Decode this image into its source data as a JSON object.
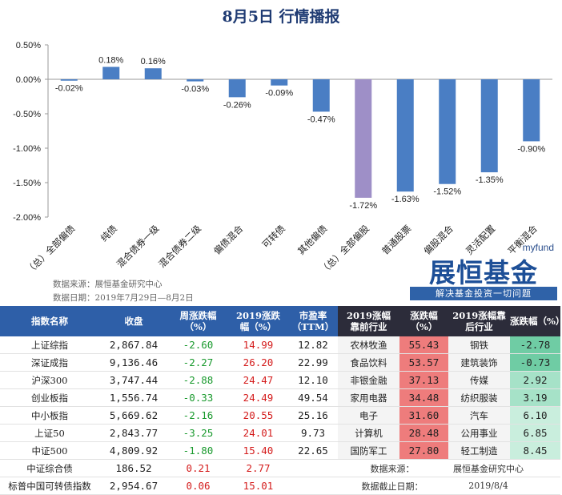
{
  "header": {
    "title": "8月5日  行情播报"
  },
  "chart_data": {
    "type": "bar",
    "categories": [
      "（总）全部偏债",
      "纯债",
      "混合债券一级",
      "混合债券二级",
      "偏债混合",
      "可转债",
      "其他偏债",
      "（总）全部偏股",
      "普通股票",
      "偏股混合",
      "灵活配置",
      "平衡混合"
    ],
    "values": [
      -0.02,
      0.18,
      0.16,
      -0.03,
      -0.26,
      -0.09,
      -0.47,
      -1.72,
      -1.63,
      -1.52,
      -1.35,
      -0.9
    ],
    "value_labels": [
      "-0.02%",
      "0.18%",
      "0.16%",
      "-0.03%",
      "-0.26%",
      "-0.09%",
      "-0.47%",
      "-1.72%",
      "-1.63%",
      "-1.52%",
      "-1.35%",
      "-0.90%"
    ],
    "highlight_index": 7,
    "ylim": [
      -2.0,
      0.5
    ],
    "yticks": [
      "0.50%",
      "0.00%",
      "-0.50%",
      "-1.00%",
      "-1.50%",
      "-2.00%"
    ],
    "bar_color": "#4a7ec4",
    "highlight_color": "#9e8fc7",
    "grid": false,
    "legend": "none"
  },
  "chart_notes": {
    "source": "数据来源：展恒基金研究中心",
    "date": "数据日期：2019年7月29日—8月2日"
  },
  "logo": {
    "small": "myfund",
    "big": "展恒基金",
    "slogan": "解决基金投资一切问题"
  },
  "table": {
    "headers": [
      "指数名称",
      "收盘",
      "周涨跌幅\n（%）",
      "2019涨跌\n幅（%）",
      "市盈率\n（TTM）",
      "2019涨幅\n靠前行业",
      "涨跌幅（%）",
      "2019涨幅靠\n后行业",
      "涨跌幅（%）"
    ],
    "rows": [
      {
        "name": "上证综指",
        "close": "2,867.84",
        "week": "-2.60",
        "ytd": "14.99",
        "pe": "12.82",
        "top_ind": "农林牧渔",
        "top_chg": "55.43",
        "bot_ind": "钢铁",
        "bot_chg": "-2.78"
      },
      {
        "name": "深证成指",
        "close": "9,136.46",
        "week": "-2.27",
        "ytd": "26.20",
        "pe": "22.99",
        "top_ind": "食品饮料",
        "top_chg": "53.57",
        "bot_ind": "建筑装饰",
        "bot_chg": "-0.73"
      },
      {
        "name": "沪深300",
        "close": "3,747.44",
        "week": "-2.88",
        "ytd": "24.47",
        "pe": "12.10",
        "top_ind": "非银金融",
        "top_chg": "37.13",
        "bot_ind": "传媒",
        "bot_chg": "2.92"
      },
      {
        "name": "创业板指",
        "close": "1,556.74",
        "week": "-0.33",
        "ytd": "24.49",
        "pe": "49.54",
        "top_ind": "家用电器",
        "top_chg": "34.48",
        "bot_ind": "纺织服装",
        "bot_chg": "3.19"
      },
      {
        "name": "中小板指",
        "close": "5,669.62",
        "week": "-2.16",
        "ytd": "20.55",
        "pe": "25.16",
        "top_ind": "电子",
        "top_chg": "31.60",
        "bot_ind": "汽车",
        "bot_chg": "6.10"
      },
      {
        "name": "上证50",
        "close": "2,843.77",
        "week": "-3.25",
        "ytd": "24.01",
        "pe": "9.73",
        "top_ind": "计算机",
        "top_chg": "28.48",
        "bot_ind": "公用事业",
        "bot_chg": "6.85"
      },
      {
        "name": "中证500",
        "close": "4,809.92",
        "week": "-1.80",
        "ytd": "15.40",
        "pe": "22.65",
        "top_ind": "国防军工",
        "top_chg": "27.80",
        "bot_ind": "轻工制造",
        "bot_chg": "8.45"
      },
      {
        "name": "中证综合债",
        "close": "186.52",
        "week": "0.21",
        "ytd": "2.77",
        "pe": "",
        "top_ind": "",
        "top_chg": "",
        "bot_ind": "",
        "bot_chg": ""
      },
      {
        "name": "标普中国可转债指数",
        "close": "2,954.67",
        "week": "0.06",
        "ytd": "15.01",
        "pe": "",
        "top_ind": "",
        "top_chg": "",
        "bot_ind": "",
        "bot_chg": ""
      }
    ],
    "source_label": "数据来源：",
    "source_value": "展恒基金研究中心",
    "date_label": "数据截止日期：",
    "date_value": "2019/8/4"
  },
  "colors": {
    "header_blue": "#2e5fa8",
    "header_dark": "#2c2c3a",
    "up_red": "#d41c1c",
    "down_green": "#1a9a2e",
    "top_fill": "#ee7c7c",
    "bottom_fill_neg": "#8fd8b8"
  }
}
